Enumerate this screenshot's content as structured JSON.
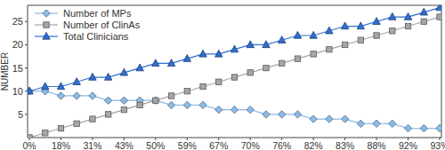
{
  "chart_data": {
    "type": "line",
    "y_label": "NUMBER",
    "categories": [
      "0%",
      null,
      "18%",
      null,
      "31%",
      null,
      "43%",
      null,
      "50%",
      null,
      "59%",
      null,
      "67%",
      null,
      "70%",
      null,
      "76%",
      null,
      "82%",
      null,
      "83%",
      null,
      "88%",
      null,
      "92%",
      null,
      "93%"
    ],
    "series": [
      {
        "name": "Number of MPs",
        "color": "#8cbbe6",
        "marker": "diamond",
        "values": [
          10,
          10,
          9,
          9,
          9,
          8,
          8,
          8,
          8,
          7,
          7,
          7,
          6,
          6,
          6,
          5,
          5,
          5,
          4,
          4,
          4,
          3,
          3,
          3,
          2,
          2,
          2
        ]
      },
      {
        "name": "Number of ClinAs",
        "color": "#a6a6a6",
        "marker": "square",
        "values": [
          0,
          1,
          2,
          3,
          4,
          5,
          6,
          7,
          8,
          9,
          10,
          11,
          12,
          13,
          14,
          15,
          16,
          17,
          18,
          19,
          20,
          21,
          22,
          23,
          24,
          25,
          26
        ]
      },
      {
        "name": "Total Clinicians",
        "color": "#2f6fd0",
        "marker": "triangle",
        "values": [
          10,
          11,
          11,
          12,
          13,
          13,
          14,
          15,
          16,
          16,
          17,
          18,
          18,
          19,
          20,
          20,
          21,
          22,
          22,
          23,
          24,
          24,
          25,
          26,
          26,
          27,
          28
        ]
      }
    ],
    "ylim": [
      0,
      28.5
    ],
    "yticks": [
      5,
      10,
      15,
      20,
      25
    ],
    "grid": false,
    "legend": "top-left"
  }
}
